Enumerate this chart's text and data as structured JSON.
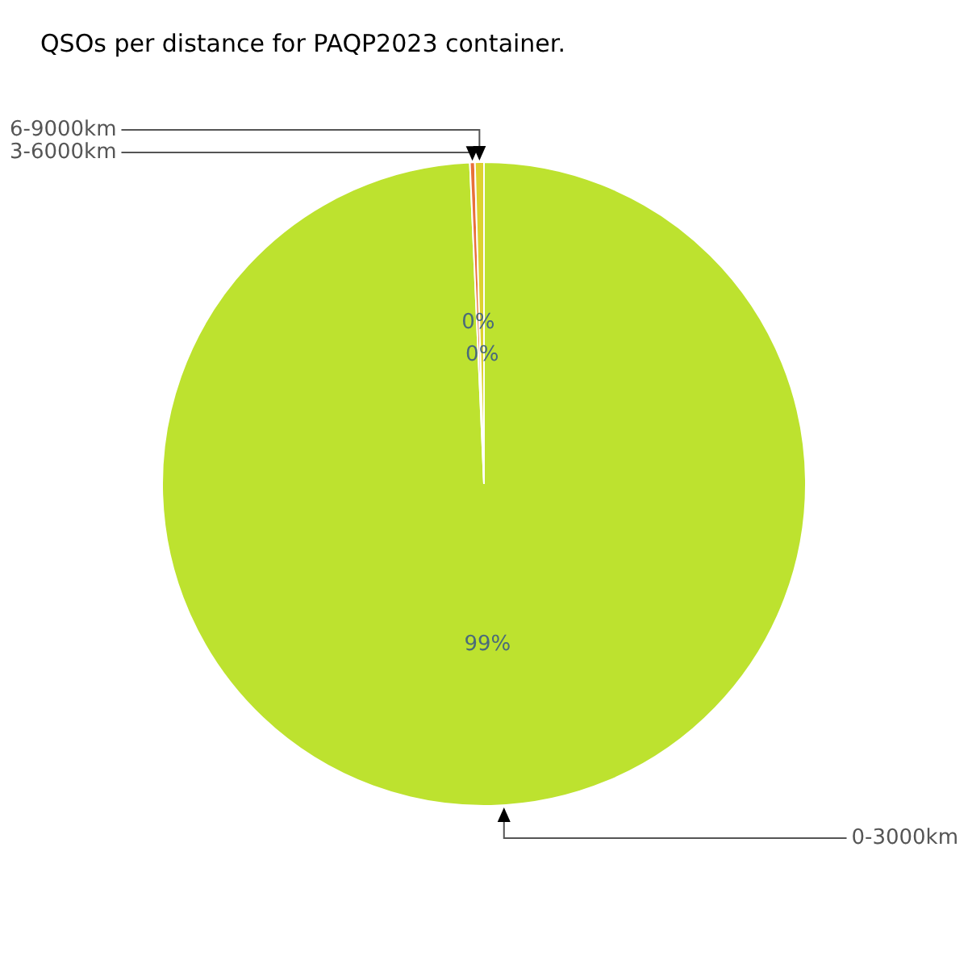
{
  "chart_data": {
    "type": "pie",
    "title": "QSOs per distance for PAQP2023 container.",
    "categories": [
      "0-3000km",
      "3-6000km",
      "6-9000km"
    ],
    "values": [
      99.3,
      0.25,
      0.45
    ],
    "colors": [
      "#bde22f",
      "#e8703a",
      "#dcd22e"
    ],
    "value_labels": [
      "99%",
      "0%",
      "0%"
    ],
    "legend": false
  }
}
